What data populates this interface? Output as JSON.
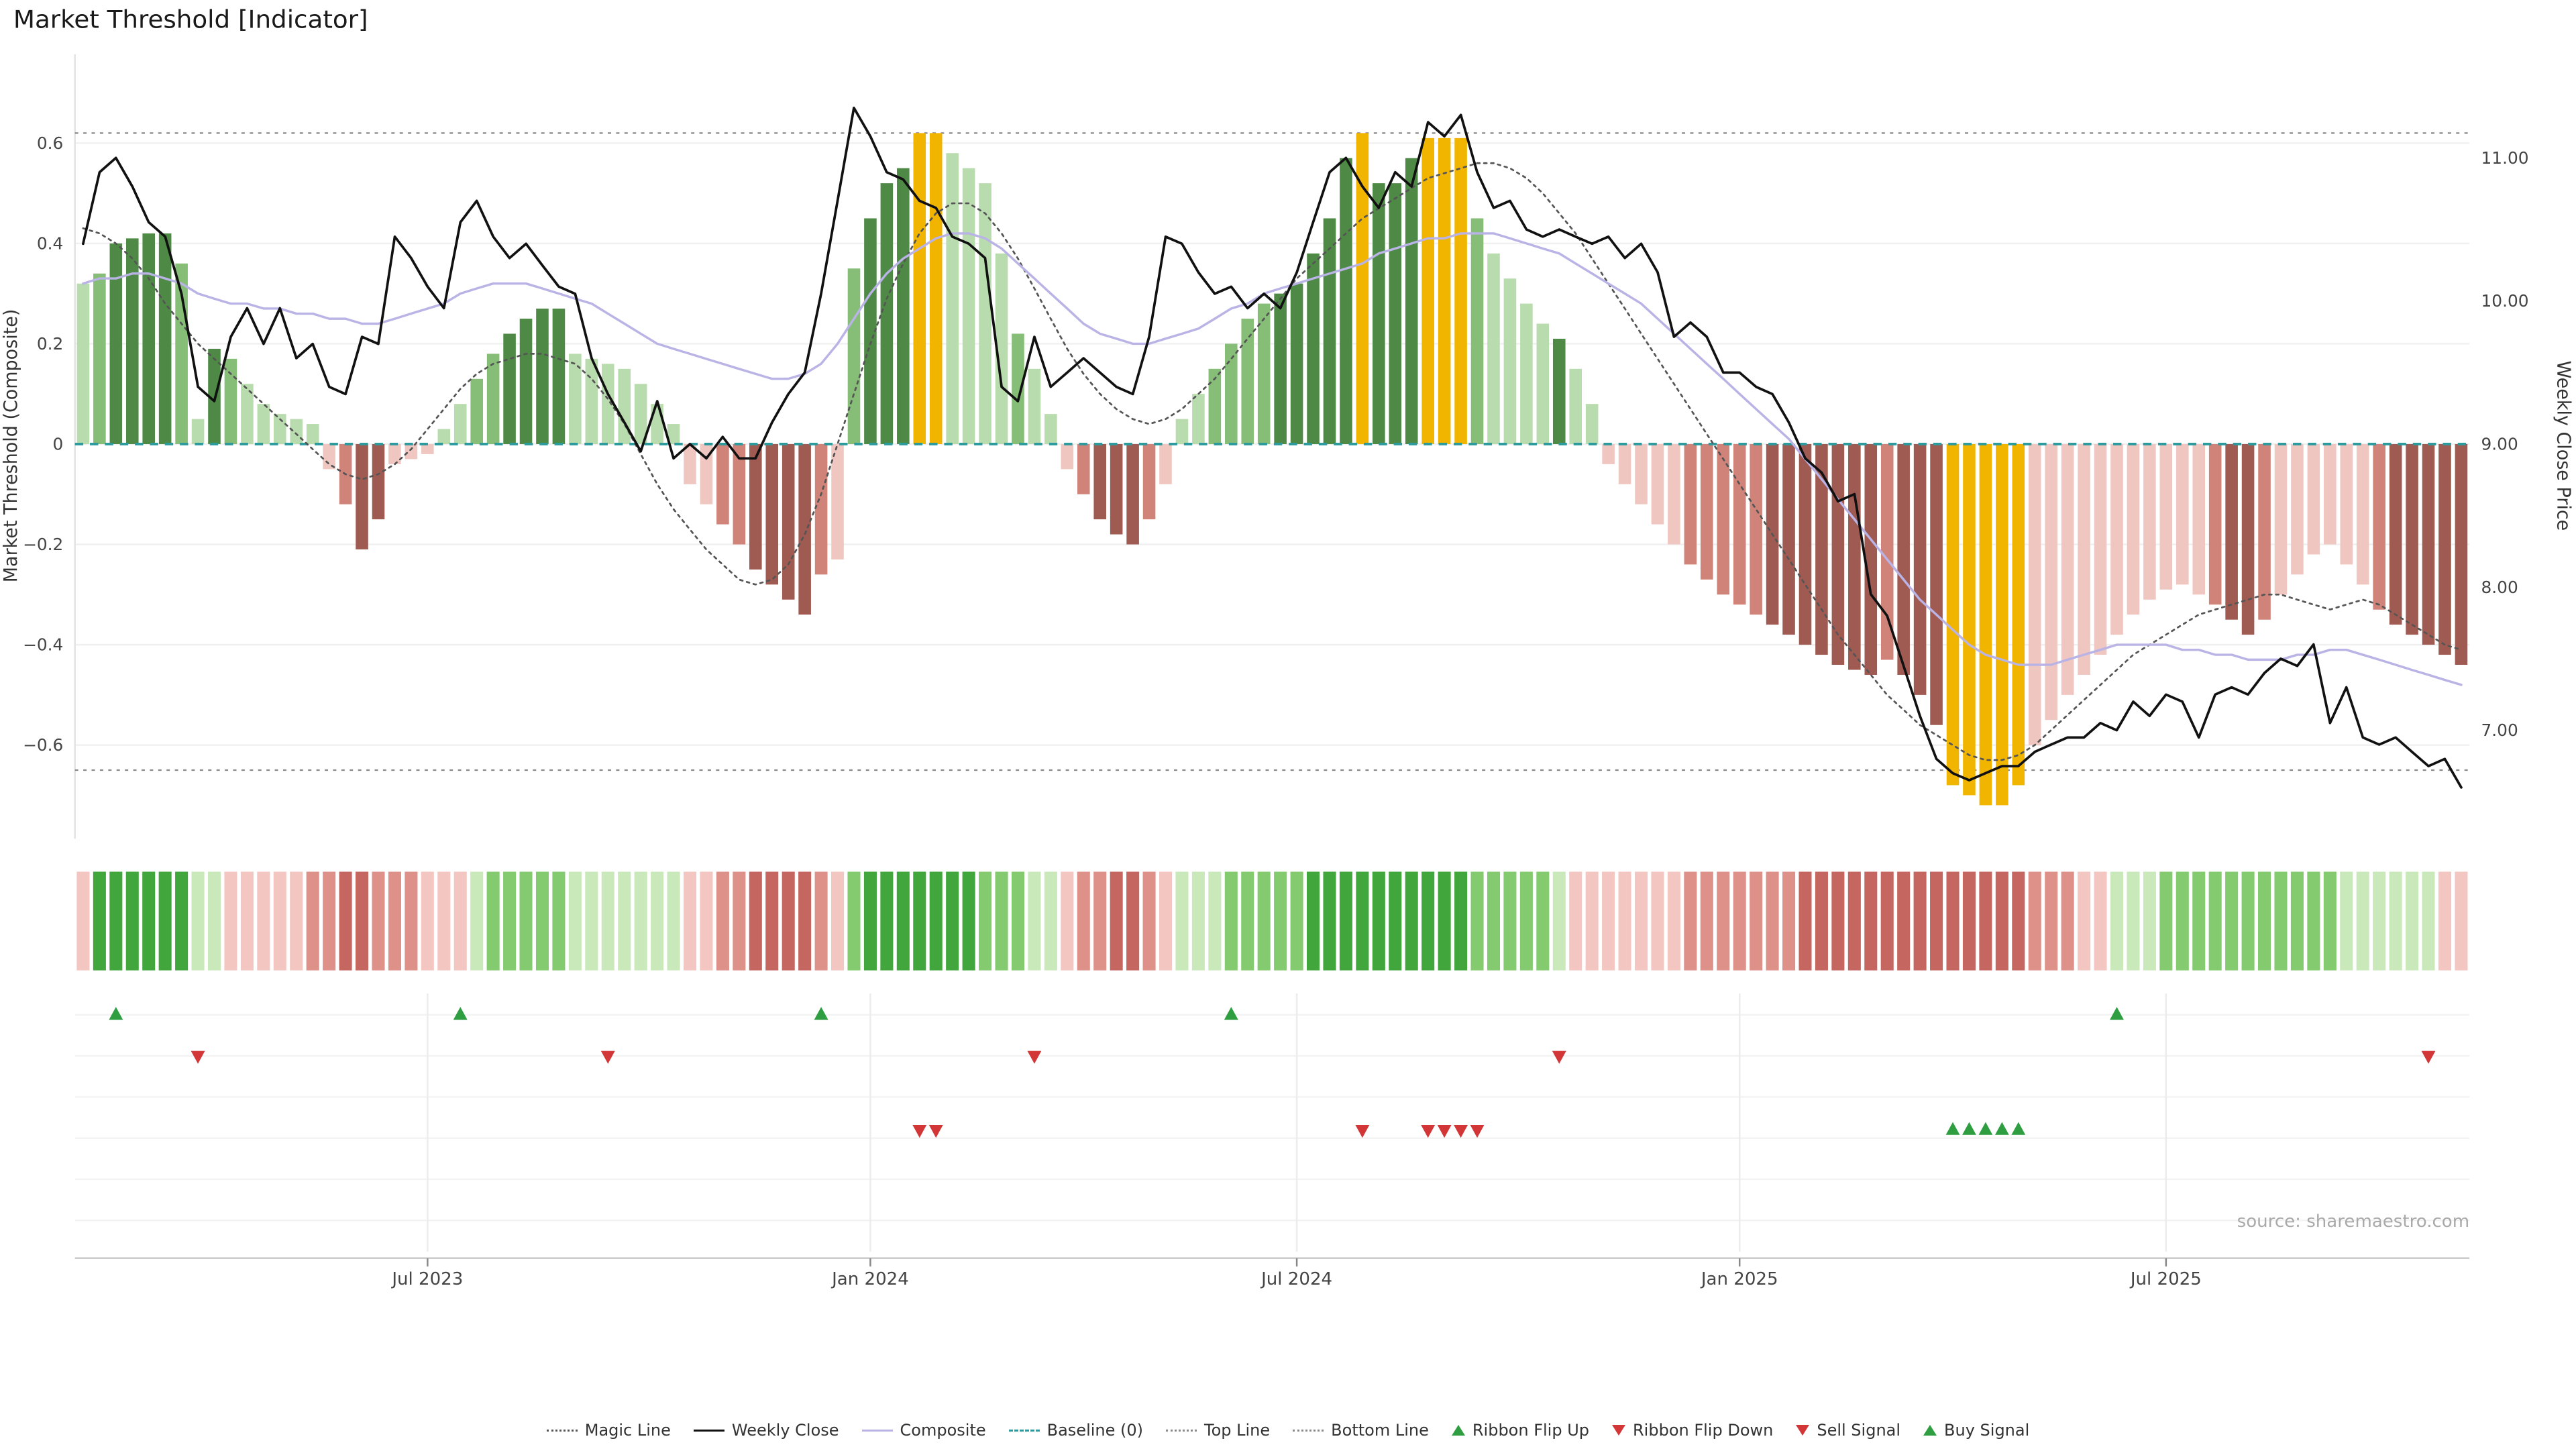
{
  "chart_data": {
    "type": "bar",
    "subtype": "indicator-histogram-with-overlay-lines",
    "title": "Market Threshold [Indicator]",
    "source": "source: sharemaestro.com",
    "left_axis": {
      "label": "Market Threshold (Composite)",
      "ticks": [
        0.6,
        0.4,
        0.2,
        0.0,
        -0.2,
        -0.4,
        -0.6
      ],
      "tick_labels": [
        "0.6",
        "0.4",
        "0.2",
        "0",
        "−0.2",
        "−0.4",
        "−0.6"
      ]
    },
    "right_axis": {
      "label": "Weekly Close Price",
      "ticks": [
        11,
        10,
        9,
        8,
        7
      ],
      "tick_labels": [
        "11.00",
        "10.00",
        "9.00",
        "8.00",
        "7.00"
      ]
    },
    "x_ticks": [
      {
        "i": 21,
        "label": "Jul 2023"
      },
      {
        "i": 48,
        "label": "Jan 2024"
      },
      {
        "i": 74,
        "label": "Jul 2024"
      },
      {
        "i": 101,
        "label": "Jan 2025"
      },
      {
        "i": 127,
        "label": "Jul 2025"
      }
    ],
    "top_line": 0.62,
    "bottom_line": -0.65,
    "baseline": 0,
    "bars": {
      "values": [
        0.32,
        0.34,
        0.4,
        0.41,
        0.42,
        0.42,
        0.36,
        0.05,
        0.19,
        0.17,
        0.12,
        0.08,
        0.06,
        0.05,
        0.04,
        -0.05,
        -0.12,
        -0.21,
        -0.15,
        -0.04,
        -0.03,
        -0.02,
        0.03,
        0.08,
        0.13,
        0.18,
        0.22,
        0.25,
        0.27,
        0.27,
        0.18,
        0.17,
        0.16,
        0.15,
        0.12,
        0.08,
        0.04,
        -0.08,
        -0.12,
        -0.16,
        -0.2,
        -0.25,
        -0.28,
        -0.31,
        -0.34,
        -0.26,
        -0.23,
        0.35,
        0.45,
        0.52,
        0.55,
        0.62,
        0.62,
        0.58,
        0.55,
        0.52,
        0.38,
        0.22,
        0.15,
        0.06,
        -0.05,
        -0.1,
        -0.15,
        -0.18,
        -0.2,
        -0.15,
        -0.08,
        0.05,
        0.1,
        0.15,
        0.2,
        0.25,
        0.28,
        0.3,
        0.32,
        0.38,
        0.45,
        0.57,
        0.62,
        0.52,
        0.52,
        0.57,
        0.61,
        0.61,
        0.61,
        0.45,
        0.38,
        0.33,
        0.28,
        0.24,
        0.21,
        0.15,
        0.08,
        -0.04,
        -0.08,
        -0.12,
        -0.16,
        -0.2,
        -0.24,
        -0.27,
        -0.3,
        -0.32,
        -0.34,
        -0.36,
        -0.38,
        -0.4,
        -0.42,
        -0.44,
        -0.45,
        -0.46,
        -0.43,
        -0.46,
        -0.5,
        -0.56,
        -0.68,
        -0.7,
        -0.72,
        -0.72,
        -0.68,
        -0.6,
        -0.55,
        -0.5,
        -0.46,
        -0.42,
        -0.38,
        -0.34,
        -0.31,
        -0.29,
        -0.28,
        -0.3,
        -0.32,
        -0.35,
        -0.38,
        -0.35,
        -0.3,
        -0.26,
        -0.22,
        -0.2,
        -0.24,
        -0.28,
        -0.33,
        -0.36,
        -0.38,
        -0.4,
        -0.42,
        -0.44
      ],
      "colors": [
        "g1",
        "g2",
        "g3",
        "g3",
        "g3",
        "g3",
        "g2",
        "g1",
        "g3",
        "g2",
        "g1",
        "g1",
        "g1",
        "g1",
        "g1",
        "r1",
        "r2",
        "r3",
        "r3",
        "r1",
        "r1",
        "r1",
        "g1",
        "g1",
        "g2",
        "g2",
        "g3",
        "g3",
        "g3",
        "g3",
        "g1",
        "g1",
        "g1",
        "g1",
        "g1",
        "g1",
        "g1",
        "r1",
        "r1",
        "r2",
        "r2",
        "r3",
        "r3",
        "r3",
        "r3",
        "r2",
        "r1",
        "g2",
        "g3",
        "g3",
        "g3",
        "o",
        "o",
        "g1",
        "g1",
        "g1",
        "g1",
        "g2",
        "g1",
        "g1",
        "r1",
        "r2",
        "r3",
        "r3",
        "r3",
        "r2",
        "r1",
        "g1",
        "g1",
        "g2",
        "g2",
        "g2",
        "g2",
        "g3",
        "g3",
        "g3",
        "g3",
        "g3",
        "o",
        "g3",
        "g3",
        "g3",
        "o",
        "o",
        "o",
        "g2",
        "g1",
        "g1",
        "g1",
        "g1",
        "g3",
        "g1",
        "g1",
        "r1",
        "r1",
        "r1",
        "r1",
        "r1",
        "r2",
        "r2",
        "r2",
        "r2",
        "r2",
        "r3",
        "r3",
        "r3",
        "r3",
        "r3",
        "r3",
        "r3",
        "r2",
        "r3",
        "r3",
        "r3",
        "o",
        "o",
        "o",
        "o",
        "o",
        "r1",
        "r1",
        "r1",
        "r1",
        "r1",
        "r1",
        "r1",
        "r1",
        "r1",
        "r1",
        "r1",
        "r2",
        "r3",
        "r3",
        "r2",
        "r1",
        "r1",
        "r1",
        "r1",
        "r1",
        "r1",
        "r2",
        "r3",
        "r3",
        "r3",
        "r3",
        "r3"
      ]
    },
    "series": [
      {
        "name": "Weekly Close",
        "axis": "right",
        "color": "#111111",
        "style": "solid",
        "values": [
          10.4,
          10.9,
          11.0,
          10.8,
          10.55,
          10.45,
          10.05,
          9.4,
          9.3,
          9.75,
          9.95,
          9.7,
          9.95,
          9.6,
          9.7,
          9.4,
          9.35,
          9.75,
          9.7,
          10.45,
          10.3,
          10.1,
          9.95,
          10.55,
          10.7,
          10.45,
          10.3,
          10.4,
          10.25,
          10.1,
          10.05,
          9.6,
          9.35,
          9.15,
          8.95,
          9.3,
          8.9,
          9.0,
          8.9,
          9.05,
          8.9,
          8.9,
          9.15,
          9.35,
          9.5,
          10.05,
          10.7,
          11.35,
          11.15,
          10.9,
          10.85,
          10.7,
          10.65,
          10.45,
          10.4,
          10.3,
          9.4,
          9.3,
          9.75,
          9.4,
          9.5,
          9.6,
          9.5,
          9.4,
          9.35,
          9.75,
          10.45,
          10.4,
          10.2,
          10.05,
          10.1,
          9.95,
          10.05,
          9.95,
          10.2,
          10.55,
          10.9,
          11.0,
          10.8,
          10.65,
          10.9,
          10.8,
          11.25,
          11.15,
          11.3,
          10.9,
          10.65,
          10.7,
          10.5,
          10.45,
          10.5,
          10.45,
          10.4,
          10.45,
          10.3,
          10.4,
          10.2,
          9.75,
          9.85,
          9.75,
          9.5,
          9.5,
          9.4,
          9.35,
          9.15,
          8.9,
          8.8,
          8.6,
          8.65,
          7.95,
          7.8,
          7.45,
          7.1,
          6.8,
          6.7,
          6.65,
          6.7,
          6.75,
          6.75,
          6.85,
          6.9,
          6.95,
          6.95,
          7.05,
          7.0,
          7.2,
          7.1,
          7.25,
          7.2,
          6.95,
          7.25,
          7.3,
          7.25,
          7.4,
          7.5,
          7.45,
          7.6,
          7.05,
          7.3,
          6.95,
          6.9,
          6.95,
          6.85,
          6.75,
          6.8,
          6.6
        ]
      },
      {
        "name": "Composite",
        "axis": "left",
        "color": "#b9b3e6",
        "style": "solid",
        "values": [
          0.32,
          0.33,
          0.33,
          0.34,
          0.34,
          0.33,
          0.32,
          0.3,
          0.29,
          0.28,
          0.28,
          0.27,
          0.27,
          0.26,
          0.26,
          0.25,
          0.25,
          0.24,
          0.24,
          0.25,
          0.26,
          0.27,
          0.28,
          0.3,
          0.31,
          0.32,
          0.32,
          0.32,
          0.31,
          0.3,
          0.29,
          0.28,
          0.26,
          0.24,
          0.22,
          0.2,
          0.19,
          0.18,
          0.17,
          0.16,
          0.15,
          0.14,
          0.13,
          0.13,
          0.14,
          0.16,
          0.2,
          0.25,
          0.3,
          0.34,
          0.37,
          0.39,
          0.41,
          0.42,
          0.42,
          0.41,
          0.39,
          0.36,
          0.33,
          0.3,
          0.27,
          0.24,
          0.22,
          0.21,
          0.2,
          0.2,
          0.21,
          0.22,
          0.23,
          0.25,
          0.27,
          0.28,
          0.3,
          0.31,
          0.32,
          0.33,
          0.34,
          0.35,
          0.36,
          0.38,
          0.39,
          0.4,
          0.41,
          0.41,
          0.42,
          0.42,
          0.42,
          0.41,
          0.4,
          0.39,
          0.38,
          0.36,
          0.34,
          0.32,
          0.3,
          0.28,
          0.25,
          0.22,
          0.19,
          0.16,
          0.13,
          0.1,
          0.07,
          0.04,
          0.01,
          -0.03,
          -0.07,
          -0.11,
          -0.15,
          -0.19,
          -0.23,
          -0.27,
          -0.31,
          -0.34,
          -0.37,
          -0.4,
          -0.42,
          -0.43,
          -0.44,
          -0.44,
          -0.44,
          -0.43,
          -0.42,
          -0.41,
          -0.4,
          -0.4,
          -0.4,
          -0.4,
          -0.41,
          -0.41,
          -0.42,
          -0.42,
          -0.43,
          -0.43,
          -0.43,
          -0.42,
          -0.42,
          -0.41,
          -0.41,
          -0.42,
          -0.43,
          -0.44,
          -0.45,
          -0.46,
          -0.47,
          -0.48
        ]
      },
      {
        "name": "Magic Line",
        "axis": "left",
        "color": "#555555",
        "style": "dotted",
        "values": [
          0.43,
          0.42,
          0.4,
          0.37,
          0.33,
          0.28,
          0.24,
          0.2,
          0.17,
          0.14,
          0.11,
          0.08,
          0.05,
          0.02,
          -0.01,
          -0.04,
          -0.06,
          -0.07,
          -0.06,
          -0.04,
          -0.01,
          0.03,
          0.07,
          0.11,
          0.14,
          0.16,
          0.17,
          0.18,
          0.18,
          0.17,
          0.16,
          0.13,
          0.09,
          0.04,
          -0.02,
          -0.08,
          -0.13,
          -0.17,
          -0.21,
          -0.24,
          -0.27,
          -0.28,
          -0.27,
          -0.24,
          -0.18,
          -0.1,
          0.0,
          0.1,
          0.2,
          0.29,
          0.36,
          0.42,
          0.46,
          0.48,
          0.48,
          0.46,
          0.42,
          0.37,
          0.31,
          0.25,
          0.19,
          0.14,
          0.1,
          0.07,
          0.05,
          0.04,
          0.05,
          0.07,
          0.1,
          0.13,
          0.17,
          0.21,
          0.25,
          0.29,
          0.33,
          0.36,
          0.39,
          0.42,
          0.45,
          0.47,
          0.49,
          0.51,
          0.53,
          0.54,
          0.55,
          0.56,
          0.56,
          0.55,
          0.53,
          0.5,
          0.46,
          0.42,
          0.37,
          0.32,
          0.27,
          0.22,
          0.17,
          0.12,
          0.07,
          0.02,
          -0.03,
          -0.08,
          -0.13,
          -0.18,
          -0.23,
          -0.28,
          -0.33,
          -0.38,
          -0.42,
          -0.46,
          -0.5,
          -0.53,
          -0.56,
          -0.58,
          -0.6,
          -0.62,
          -0.63,
          -0.63,
          -0.62,
          -0.6,
          -0.57,
          -0.54,
          -0.51,
          -0.48,
          -0.45,
          -0.42,
          -0.4,
          -0.38,
          -0.36,
          -0.34,
          -0.33,
          -0.32,
          -0.31,
          -0.3,
          -0.3,
          -0.31,
          -0.32,
          -0.33,
          -0.32,
          -0.31,
          -0.32,
          -0.34,
          -0.36,
          -0.38,
          -0.4,
          -0.41
        ]
      }
    ],
    "ribbon": [
      "r1",
      "g3",
      "g3",
      "g3",
      "g3",
      "g3",
      "g3",
      "g1",
      "g1",
      "r1",
      "r1",
      "r1",
      "r1",
      "r1",
      "r2",
      "r2",
      "r3",
      "r3",
      "r2",
      "r2",
      "r2",
      "r1",
      "r1",
      "r1",
      "g1",
      "g2",
      "g2",
      "g2",
      "g2",
      "g2",
      "g1",
      "g1",
      "g1",
      "g1",
      "g1",
      "g1",
      "g1",
      "r1",
      "r1",
      "r2",
      "r2",
      "r3",
      "r3",
      "r3",
      "r3",
      "r2",
      "r1",
      "g2",
      "g3",
      "g3",
      "g3",
      "g3",
      "g3",
      "g3",
      "g3",
      "g2",
      "g2",
      "g2",
      "g1",
      "g1",
      "r1",
      "r2",
      "r2",
      "r3",
      "r3",
      "r2",
      "r1",
      "g1",
      "g1",
      "g1",
      "g2",
      "g2",
      "g2",
      "g2",
      "g2",
      "g3",
      "g3",
      "g3",
      "g3",
      "g3",
      "g3",
      "g3",
      "g3",
      "g3",
      "g3",
      "g2",
      "g2",
      "g2",
      "g2",
      "g2",
      "g1",
      "r1",
      "r1",
      "r1",
      "r1",
      "r1",
      "r1",
      "r1",
      "r2",
      "r2",
      "r2",
      "r2",
      "r2",
      "r2",
      "r2",
      "r3",
      "r3",
      "r3",
      "r3",
      "r3",
      "r3",
      "r3",
      "r3",
      "r3",
      "r3",
      "r3",
      "r3",
      "r3",
      "r3",
      "r2",
      "r2",
      "r2",
      "r1",
      "r1",
      "g1",
      "g1",
      "g1",
      "g2",
      "g2",
      "g2",
      "g2",
      "g2",
      "g2",
      "g2",
      "g2",
      "g2",
      "g2",
      "g2",
      "g1",
      "g1",
      "g1",
      "g1",
      "g1",
      "g1",
      "r1",
      "r1"
    ],
    "signals": {
      "ribbon_flip_up": [
        2,
        23,
        45,
        70,
        124
      ],
      "ribbon_flip_down": [
        7,
        32,
        58,
        90,
        143
      ],
      "sell": [
        51,
        52,
        78,
        82,
        83,
        84,
        85
      ],
      "buy": [
        114,
        115,
        116,
        117,
        118
      ]
    },
    "palette": {
      "bar": {
        "g1": "#b9dcae",
        "g2": "#86bd77",
        "g3": "#4e8a45",
        "o": "#f1b500",
        "r1": "#f0c6c1",
        "r2": "#cf8379",
        "r3": "#9f5a52"
      },
      "ribbon": {
        "g1": "#c9e9ba",
        "g2": "#84cb70",
        "g3": "#41a63c",
        "r1": "#f4c6c1",
        "r2": "#de9189",
        "r3": "#c66660"
      },
      "lines": {
        "weekly_close": "#111111",
        "composite": "#b9b3e6",
        "magic": "#555555",
        "baseline": "#2b9b9e",
        "bounds": "#8a8a8a"
      },
      "signals": {
        "buy": "#2f9e41",
        "sell": "#d23636"
      }
    },
    "legend": [
      {
        "label": "Magic Line",
        "marker": {
          "kind": "line",
          "style": "dotted",
          "color": "#555555"
        }
      },
      {
        "label": "Weekly Close",
        "marker": {
          "kind": "line",
          "style": "solid",
          "color": "#111111"
        }
      },
      {
        "label": "Composite",
        "marker": {
          "kind": "line",
          "style": "solid",
          "color": "#b9b3e6"
        }
      },
      {
        "label": "Baseline (0)",
        "marker": {
          "kind": "line",
          "style": "dashed",
          "color": "#2b9b9e"
        }
      },
      {
        "label": "Top Line",
        "marker": {
          "kind": "line",
          "style": "dotted",
          "color": "#8a8a8a"
        }
      },
      {
        "label": "Bottom Line",
        "marker": {
          "kind": "line",
          "style": "dotted",
          "color": "#8a8a8a"
        }
      },
      {
        "label": "Ribbon Flip Up",
        "marker": {
          "kind": "tri-up",
          "color": "#2f9e41"
        }
      },
      {
        "label": "Ribbon Flip Down",
        "marker": {
          "kind": "tri-down",
          "color": "#d23636"
        }
      },
      {
        "label": "Sell Signal",
        "marker": {
          "kind": "tri-down",
          "color": "#d23636"
        }
      },
      {
        "label": "Buy Signal",
        "marker": {
          "kind": "tri-up",
          "color": "#2f9e41"
        }
      }
    ]
  }
}
